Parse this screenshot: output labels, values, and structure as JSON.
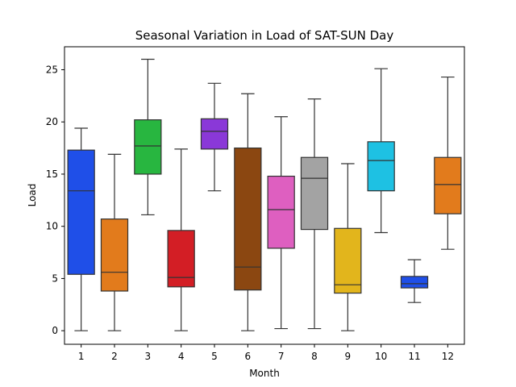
{
  "chart_data": {
    "type": "box",
    "title": "Seasonal Variation in Load of SAT-SUN Day",
    "xlabel": "Month",
    "ylabel": "Load",
    "ylim": [
      -1.3,
      27.2
    ],
    "yticks": [
      0,
      5,
      10,
      15,
      20,
      25
    ],
    "grid": false,
    "categories": [
      "1",
      "2",
      "3",
      "4",
      "5",
      "6",
      "7",
      "8",
      "9",
      "10",
      "11",
      "12"
    ],
    "boxes": [
      {
        "category": "1",
        "whisker_low": 0.0,
        "q1": 5.4,
        "median": 13.4,
        "q3": 17.3,
        "whisker_high": 19.4,
        "color": "#1f4fe8"
      },
      {
        "category": "2",
        "whisker_low": 0.0,
        "q1": 3.8,
        "median": 5.6,
        "q3": 10.7,
        "whisker_high": 16.9,
        "color": "#e27b1c"
      },
      {
        "category": "3",
        "whisker_low": 11.1,
        "q1": 15.0,
        "median": 17.7,
        "q3": 20.2,
        "whisker_high": 26.0,
        "color": "#28b640"
      },
      {
        "category": "4",
        "whisker_low": 0.0,
        "q1": 4.2,
        "median": 5.1,
        "q3": 9.6,
        "whisker_high": 17.4,
        "color": "#d31e25"
      },
      {
        "category": "5",
        "whisker_low": 13.4,
        "q1": 17.4,
        "median": 19.1,
        "q3": 20.3,
        "whisker_high": 23.7,
        "color": "#8a38d8"
      },
      {
        "category": "6",
        "whisker_low": 0.0,
        "q1": 3.9,
        "median": 6.1,
        "q3": 17.5,
        "whisker_high": 22.7,
        "color": "#8b4711"
      },
      {
        "category": "7",
        "whisker_low": 0.2,
        "q1": 7.9,
        "median": 11.6,
        "q3": 14.8,
        "whisker_high": 20.5,
        "color": "#de5fc0"
      },
      {
        "category": "8",
        "whisker_low": 0.2,
        "q1": 9.7,
        "median": 14.6,
        "q3": 16.6,
        "whisker_high": 22.2,
        "color": "#a3a3a3"
      },
      {
        "category": "9",
        "whisker_low": 0.0,
        "q1": 3.6,
        "median": 4.4,
        "q3": 9.8,
        "whisker_high": 16.0,
        "color": "#e2b51c"
      },
      {
        "category": "10",
        "whisker_low": 9.4,
        "q1": 13.4,
        "median": 16.3,
        "q3": 18.1,
        "whisker_high": 25.1,
        "color": "#1ec1e3"
      },
      {
        "category": "11",
        "whisker_low": 2.7,
        "q1": 4.1,
        "median": 4.5,
        "q3": 5.2,
        "whisker_high": 6.8,
        "color": "#1f4fe8"
      },
      {
        "category": "12",
        "whisker_low": 7.8,
        "q1": 11.2,
        "median": 14.0,
        "q3": 16.6,
        "whisker_high": 24.3,
        "color": "#e27b1c"
      }
    ]
  }
}
